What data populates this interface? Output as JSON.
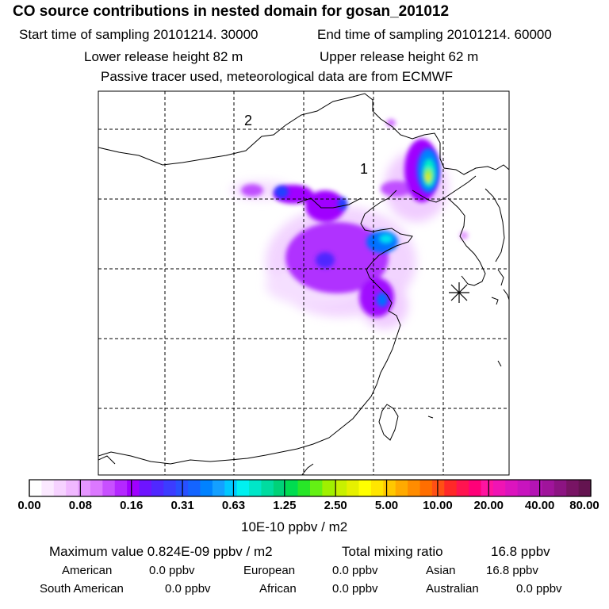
{
  "header": {
    "title": "CO  source contributions in nested domain for gosan_201012",
    "start_label": "Start time of sampling 20101214. 30000",
    "end_label": "End time of sampling 20101214. 60000",
    "lower_label": "Lower release height   82 m",
    "upper_label": "Upper release height   62 m",
    "tracer_line": "Passive tracer used, meteorological data are from ECMWF"
  },
  "map": {
    "labels": {
      "region_1": "1",
      "region_2": "2"
    },
    "receptor_marker": "asterisk-icon"
  },
  "colorbar": {
    "unit": "10E-10 ppbv / m2",
    "ticks": [
      "0.00",
      "0.08",
      "0.16",
      "0.31",
      "0.63",
      "1.25",
      "2.50",
      "5.00",
      "10.00",
      "20.00",
      "40.00",
      "80.00"
    ],
    "colors": [
      "#ffffff",
      "#fbe9ff",
      "#f6d2ff",
      "#f0b8ff",
      "#e696ff",
      "#dc78ff",
      "#c850ff",
      "#b428ff",
      "#a000ff",
      "#6e14ff",
      "#5028ff",
      "#3c3cff",
      "#2850ff",
      "#1464ff",
      "#0082ff",
      "#14a0ff",
      "#00c8ff",
      "#00f0f0",
      "#00e6c8",
      "#00dca0",
      "#00d278",
      "#00dc50",
      "#28e628",
      "#64f014",
      "#a0f000",
      "#c8f000",
      "#e6f000",
      "#ffff00",
      "#ffe600",
      "#ffc800",
      "#ffaa00",
      "#ff8c00",
      "#ff6e00",
      "#ff5014",
      "#ff2828",
      "#ff1450",
      "#ff0078",
      "#ff14a0",
      "#f014b4",
      "#dc14be",
      "#c814be",
      "#b414b4",
      "#a0149b",
      "#8c1482",
      "#781464",
      "#641450"
    ]
  },
  "stats": {
    "max_label": "Maximum value  0.824E-09 ppbv / m2",
    "total_label": "Total mixing ratio",
    "total_value": "16.8 ppbv",
    "american_label": "American",
    "american_value": "0.0 ppbv",
    "european_label": "European",
    "european_value": "0.0 ppbv",
    "asian_label": "Asian",
    "asian_value": "16.8 ppbv",
    "south_american_label": "South American",
    "south_american_value": "0.0 ppbv",
    "african_label": "African",
    "african_value": "0.0 ppbv",
    "australian_label": "Australian",
    "australian_value": "0.0 ppbv"
  }
}
